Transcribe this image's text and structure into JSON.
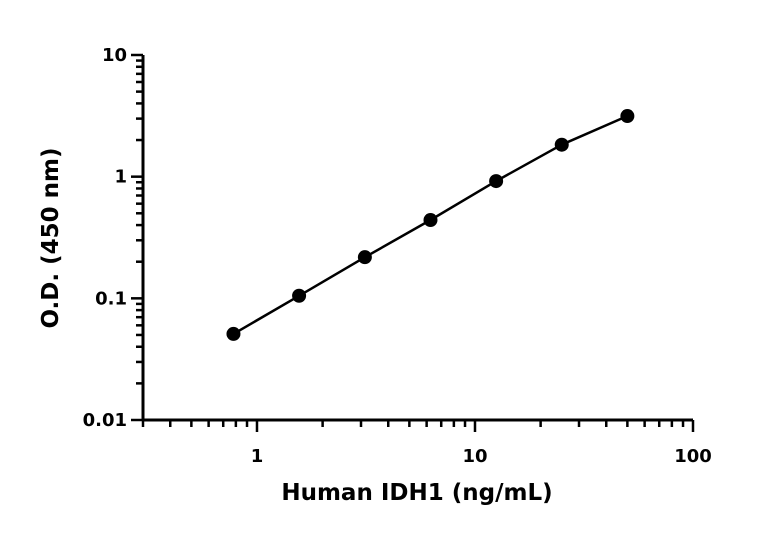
{
  "chart_data": {
    "type": "scatter",
    "xlabel": "Human IDH1 (ng/mL)",
    "ylabel": "O.D. (450 nm)",
    "xscale": "log",
    "yscale": "log",
    "xlim": [
      0.3,
      100
    ],
    "ylim": [
      0.01,
      10
    ],
    "x_ticks": [
      {
        "value": 1,
        "label": "1"
      },
      {
        "value": 10,
        "label": "10"
      },
      {
        "value": 100,
        "label": "100"
      }
    ],
    "y_ticks": [
      {
        "value": 0.01,
        "label": "0.01"
      },
      {
        "value": 0.1,
        "label": "0.1"
      },
      {
        "value": 1,
        "label": "1"
      },
      {
        "value": 10,
        "label": "10"
      }
    ],
    "grid": false,
    "legend": "none",
    "series": [
      {
        "x": [
          0.78,
          1.56,
          3.125,
          6.25,
          12.5,
          25,
          50
        ],
        "y": [
          0.051,
          0.105,
          0.218,
          0.44,
          0.92,
          1.83,
          3.15
        ],
        "color": "#000000",
        "marker": "circle",
        "fit_line": true
      }
    ]
  }
}
